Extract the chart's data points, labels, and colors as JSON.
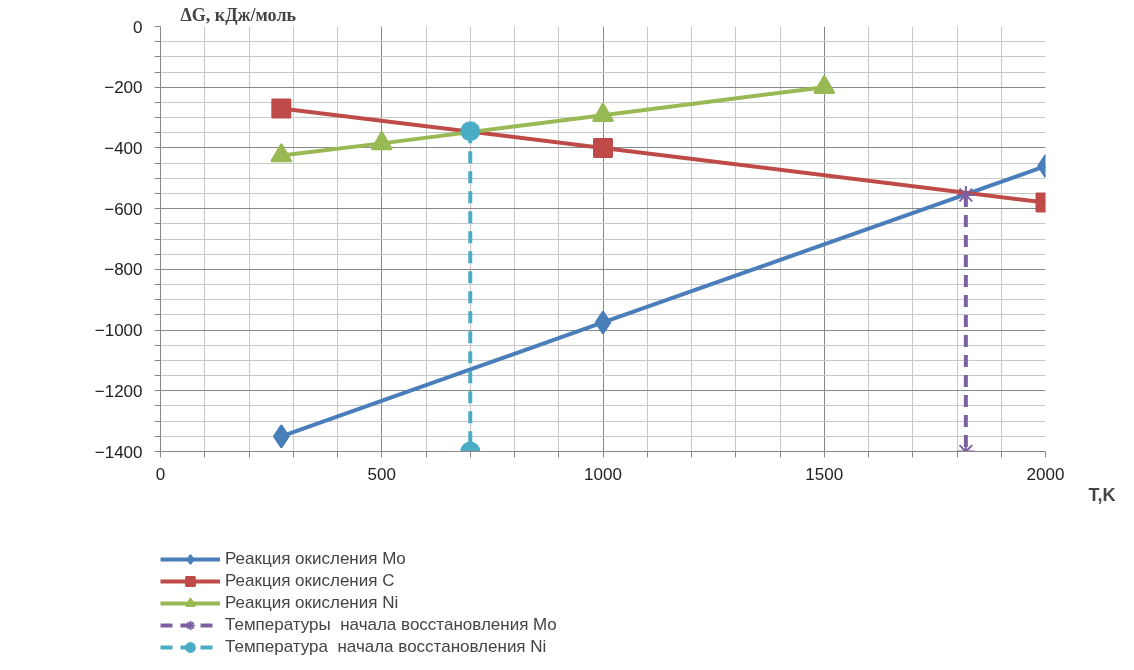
{
  "chart_data": {
    "type": "line",
    "xlabel": "T,K",
    "ylabel": "ΔG, кДж/моль",
    "xlim": [
      0,
      2000
    ],
    "xticks": [
      0,
      500,
      1000,
      1500,
      2000
    ],
    "ylim": [
      -1400,
      0
    ],
    "yticks": [
      -1400,
      -1200,
      -1000,
      -800,
      -600,
      -400,
      -200,
      0
    ],
    "grid": true,
    "legend": "bottom",
    "series": [
      {
        "name": "Реакция окисления Mo",
        "color": "#4a7ebb",
        "marker": "diamond",
        "line_style": "solid",
        "x": [
          273,
          1000,
          2000
        ],
        "values": [
          -1350,
          -975,
          -460
        ]
      },
      {
        "name": "Реакция окисления C",
        "color": "#be4b48",
        "marker": "square",
        "line_style": "solid",
        "x": [
          273,
          1000,
          2000
        ],
        "values": [
          -270,
          -400,
          -580
        ]
      },
      {
        "name": "Реакция окисления Ni",
        "color": "#98b954",
        "marker": "triangle",
        "line_style": "solid",
        "x": [
          273,
          500,
          1000,
          1500
        ],
        "values": [
          -425,
          -385,
          -292,
          -200
        ]
      },
      {
        "name": "Температуры  начала восстановления Mo",
        "color": "#7d60a0",
        "marker": "cross",
        "line_style": "dashed",
        "x": [
          1820,
          1820
        ],
        "values": [
          -555,
          -1400
        ]
      },
      {
        "name": "Температура  начала восстановления Ni",
        "color": "#4bacc6",
        "marker": "circle",
        "line_style": "dashed",
        "x": [
          700,
          700
        ],
        "values": [
          -345,
          -1400
        ]
      }
    ]
  }
}
